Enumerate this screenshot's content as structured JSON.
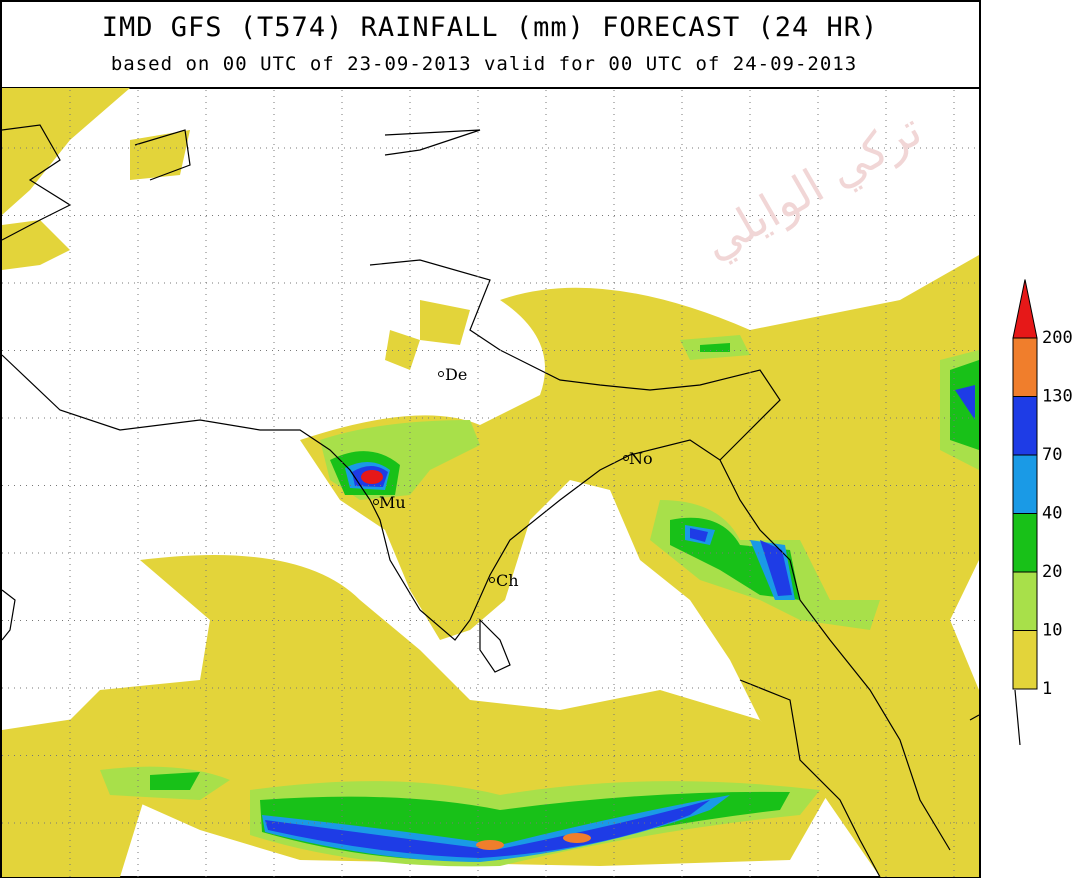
{
  "header": {
    "title": "IMD GFS (T574) RAINFALL (mm) FORECAST (24 HR)",
    "subtitle": "based on 00 UTC of 23-09-2013 valid for 00 UTC of 24-09-2013"
  },
  "watermark": "تركي الوايلي",
  "cities": [
    "De",
    "Mu",
    "No",
    "Ch"
  ],
  "legend": {
    "labels": [
      "1",
      "10",
      "20",
      "40",
      "70",
      "130",
      "200"
    ],
    "colors": [
      "#e3d43a",
      "#a8e04a",
      "#18c118",
      "#1a9ae6",
      "#1e3ce6",
      "#f07e2c",
      "#e61818"
    ]
  }
}
